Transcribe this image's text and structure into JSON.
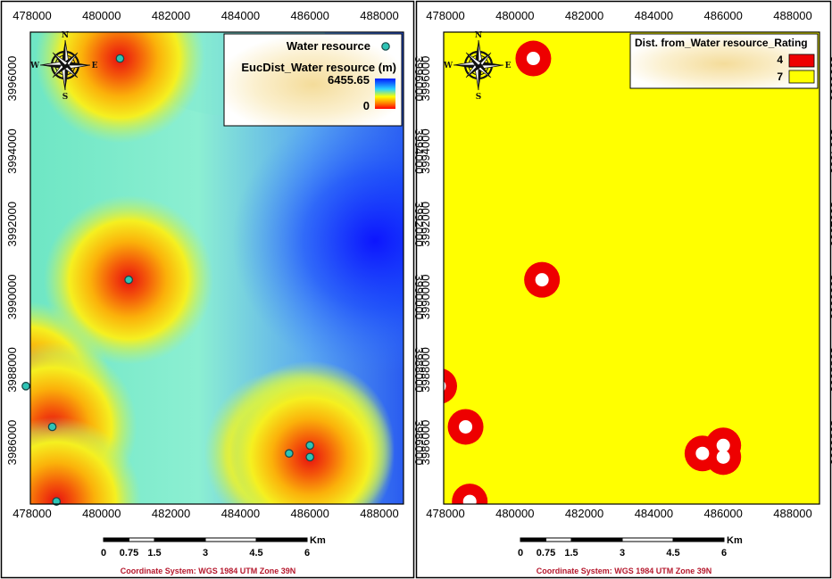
{
  "x_tick_labels": [
    "478000",
    "480000",
    "482000",
    "484000",
    "486000",
    "488000"
  ],
  "y_tick_labels": [
    "3996000",
    "3994000",
    "3992000",
    "3990000",
    "3988000",
    "3986000"
  ],
  "compass": {
    "n": "N",
    "s": "S",
    "e": "E",
    "w": "W"
  },
  "colors": {
    "ramp_near": "#ff0000",
    "ramp_mid": "#ffff00",
    "ramp_far": "#0000ff",
    "well_fill": "#2ec4b6",
    "rating_4": "#ee0000",
    "rating_7": "#ffff00"
  },
  "left_panel": {
    "legend": {
      "point_label": "Water resource",
      "raster_title": "EucDist_Water resource (m)",
      "max_value": "6455.65",
      "min_value": "0"
    },
    "water_resources": [
      {
        "x": 480530,
        "y": 3996550
      },
      {
        "x": 480780,
        "y": 3990470
      },
      {
        "x": 477820,
        "y": 3987550
      },
      {
        "x": 478580,
        "y": 3986430
      },
      {
        "x": 478700,
        "y": 3984380
      },
      {
        "x": 485400,
        "y": 3985700
      },
      {
        "x": 486000,
        "y": 3985920
      },
      {
        "x": 486000,
        "y": 3985600
      }
    ]
  },
  "right_panel": {
    "legend": {
      "title": "Dist. from_Water resource_Rating",
      "classes": [
        {
          "label": "4",
          "color": "#ee0000"
        },
        {
          "label": "7",
          "color": "#ffff00"
        }
      ]
    }
  },
  "scale_bar": {
    "unit": "Km",
    "labels": [
      "0",
      "0.75",
      "1.5",
      "3",
      "4.5",
      "6"
    ]
  },
  "coordinate_system": "Coordinate System: WGS 1984 UTM Zone 39N"
}
